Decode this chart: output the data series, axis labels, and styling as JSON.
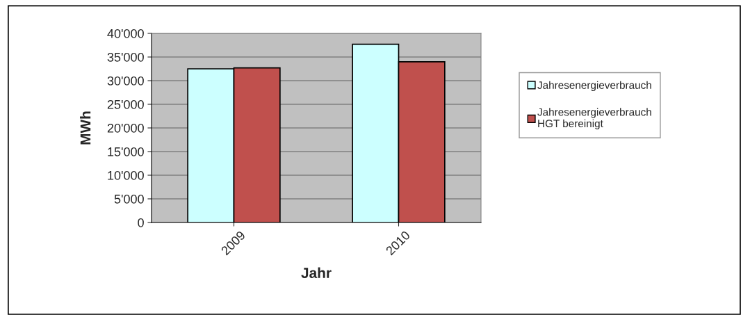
{
  "chart_data": {
    "type": "bar",
    "xlabel": "Jahr",
    "ylabel": "MWh",
    "categories": [
      "2009",
      "2010"
    ],
    "series": [
      {
        "name": "Jahresenergieverbrauch",
        "color": "#ccffff",
        "values": [
          32500,
          37700
        ]
      },
      {
        "name": "Jahresenergieverbrauch\nHGT bereinigt",
        "color": "#c0504d",
        "values": [
          32700,
          34000
        ]
      }
    ],
    "ylim": [
      0,
      40000
    ],
    "yticks": [
      {
        "value": 0,
        "label": "0"
      },
      {
        "value": 5000,
        "label": "5'000"
      },
      {
        "value": 10000,
        "label": "10'000"
      },
      {
        "value": 15000,
        "label": "15'000"
      },
      {
        "value": 20000,
        "label": "20'000"
      },
      {
        "value": 25000,
        "label": "25'000"
      },
      {
        "value": 30000,
        "label": "30'000"
      },
      {
        "value": 35000,
        "label": "35'000"
      },
      {
        "value": 40000,
        "label": "40'000"
      }
    ],
    "grid": "y",
    "legend": "right"
  }
}
